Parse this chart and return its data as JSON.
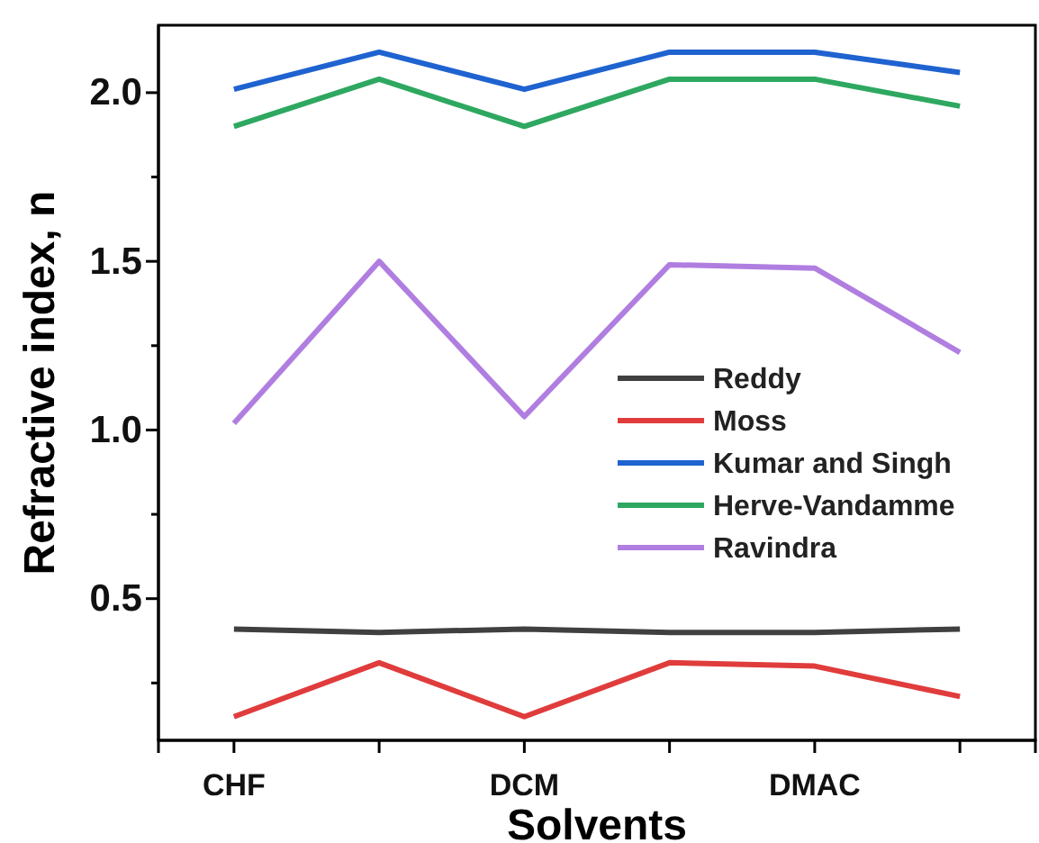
{
  "chart_data": {
    "type": "line",
    "xlabel": "Solvents",
    "ylabel": "Refractive index, n",
    "categories": [
      "CHF",
      null,
      "DCM",
      null,
      "DMAC",
      null
    ],
    "series": [
      {
        "name": "Reddy",
        "color": "#404040",
        "values": [
          0.41,
          0.4,
          0.41,
          0.4,
          0.4,
          0.41
        ]
      },
      {
        "name": "Moss",
        "color": "#e03c3c",
        "values": [
          0.15,
          0.31,
          0.15,
          0.31,
          0.3,
          0.21
        ]
      },
      {
        "name": "Kumar and Singh",
        "color": "#1f63d0",
        "values": [
          2.01,
          2.12,
          2.01,
          2.12,
          2.12,
          2.06
        ]
      },
      {
        "name": "Herve-Vandamme",
        "color": "#2ea860",
        "values": [
          1.9,
          2.04,
          1.9,
          2.04,
          2.04,
          1.96
        ]
      },
      {
        "name": "Ravindra",
        "color": "#b07ee0",
        "values": [
          1.02,
          1.5,
          1.04,
          1.49,
          1.48,
          1.23
        ]
      }
    ],
    "ylim": [
      0.08,
      2.2
    ],
    "yticks": [
      {
        "value": 0.25,
        "label": null
      },
      {
        "value": 0.5,
        "label": "0.5"
      },
      {
        "value": 0.75,
        "label": null
      },
      {
        "value": 1.0,
        "label": "1.0"
      },
      {
        "value": 1.25,
        "label": null
      },
      {
        "value": 1.5,
        "label": "1.5"
      },
      {
        "value": 1.75,
        "label": null
      },
      {
        "value": 2.0,
        "label": "2.0"
      }
    ],
    "legend": "right",
    "grid": false,
    "marker": "none",
    "line_style": "solid"
  }
}
